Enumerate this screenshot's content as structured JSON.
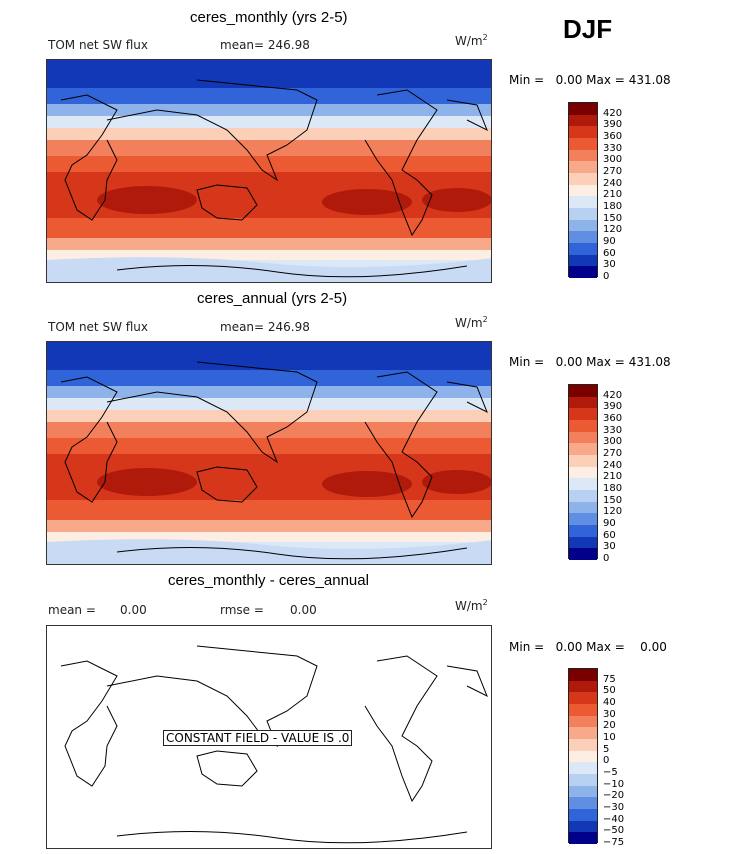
{
  "season": "DJF",
  "panels": [
    {
      "title": "ceres_monthly (yrs 2-5)",
      "left_label": "TOM net SW flux",
      "mean_label": "mean= 246.98",
      "units": "W/m",
      "units_sup": "2",
      "min_label": "Min =",
      "min_value": "0.00",
      "max_label": "Max =",
      "max_value": "431.08",
      "colorbar_ticks": [
        "420",
        "390",
        "360",
        "330",
        "300",
        "270",
        "240",
        "210",
        "180",
        "150",
        "120",
        "90",
        "60",
        "30",
        "0"
      ]
    },
    {
      "title": "ceres_annual (yrs 2-5)",
      "left_label": "TOM net SW flux",
      "mean_label": "mean= 246.98",
      "units": "W/m",
      "units_sup": "2",
      "min_label": "Min =",
      "min_value": "0.00",
      "max_label": "Max =",
      "max_value": "431.08",
      "colorbar_ticks": [
        "420",
        "390",
        "360",
        "330",
        "300",
        "270",
        "240",
        "210",
        "180",
        "150",
        "120",
        "90",
        "60",
        "30",
        "0"
      ]
    },
    {
      "title": "ceres_monthly - ceres_annual",
      "left_label": "mean =",
      "left_value": "0.00",
      "rmse_label": "rmse =",
      "rmse_value": "0.00",
      "units": "W/m",
      "units_sup": "2",
      "min_label": "Min =",
      "min_value": "0.00",
      "max_label": "Max =",
      "max_value": "0.00",
      "colorbar_ticks": [
        "75",
        "50",
        "40",
        "30",
        "20",
        "10",
        "5",
        "0",
        "−5",
        "−10",
        "−20",
        "−30",
        "−40",
        "−50",
        "−75"
      ],
      "constant_label": "CONSTANT FIELD - VALUE IS .0"
    }
  ],
  "colors": {
    "scale": [
      "#7a0000",
      "#b01a0a",
      "#d6361a",
      "#ec5a33",
      "#f3805c",
      "#f8a98a",
      "#fbcfb8",
      "#fdeee4",
      "#dde8f7",
      "#b8d0f2",
      "#8eb2ea",
      "#5f8ee3",
      "#3064d8",
      "#1238b8",
      "#00008a"
    ]
  }
}
